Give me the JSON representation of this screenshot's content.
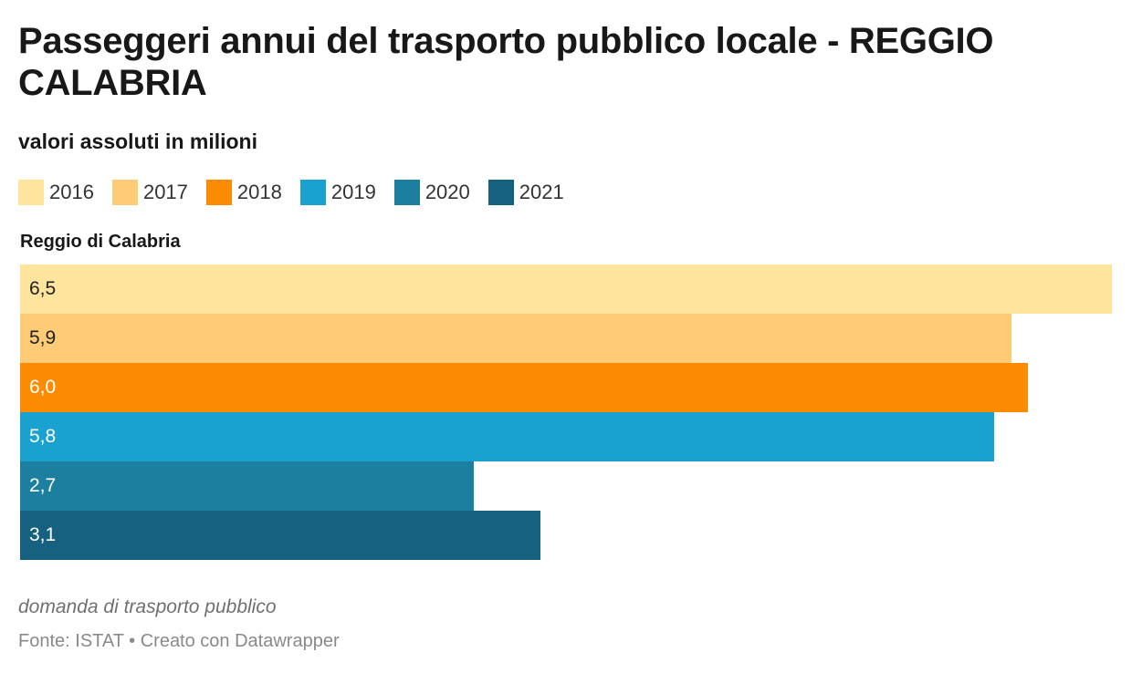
{
  "title": "Passeggeri annui del trasporto pubblico locale - REGGIO CALABRIA",
  "subtitle": "valori assoluti in milioni",
  "notes": "domanda di trasporto pubblico",
  "source": "Fonte: ISTAT • Creato con Datawrapper",
  "chart_data": {
    "type": "bar",
    "orientation": "horizontal",
    "categories": [
      "Reggio di Calabria"
    ],
    "series": [
      {
        "name": "2016",
        "values": [
          6.5
        ],
        "label": "6,5",
        "color": "#fee49c",
        "text_color": "#222222"
      },
      {
        "name": "2017",
        "values": [
          5.9
        ],
        "label": "5,9",
        "color": "#fecb76",
        "text_color": "#222222"
      },
      {
        "name": "2018",
        "values": [
          6.0
        ],
        "label": "6,0",
        "color": "#fb8b00",
        "text_color": "#ffffff"
      },
      {
        "name": "2019",
        "values": [
          5.8
        ],
        "label": "5,8",
        "color": "#19a2d0",
        "text_color": "#ffffff"
      },
      {
        "name": "2020",
        "values": [
          2.7
        ],
        "label": "2,7",
        "color": "#1d7fa0",
        "text_color": "#ffffff"
      },
      {
        "name": "2021",
        "values": [
          3.1
        ],
        "label": "3,1",
        "color": "#16617f",
        "text_color": "#ffffff"
      }
    ],
    "xlim": [
      0,
      6.5
    ],
    "grid": false,
    "legend_position": "top-left"
  }
}
